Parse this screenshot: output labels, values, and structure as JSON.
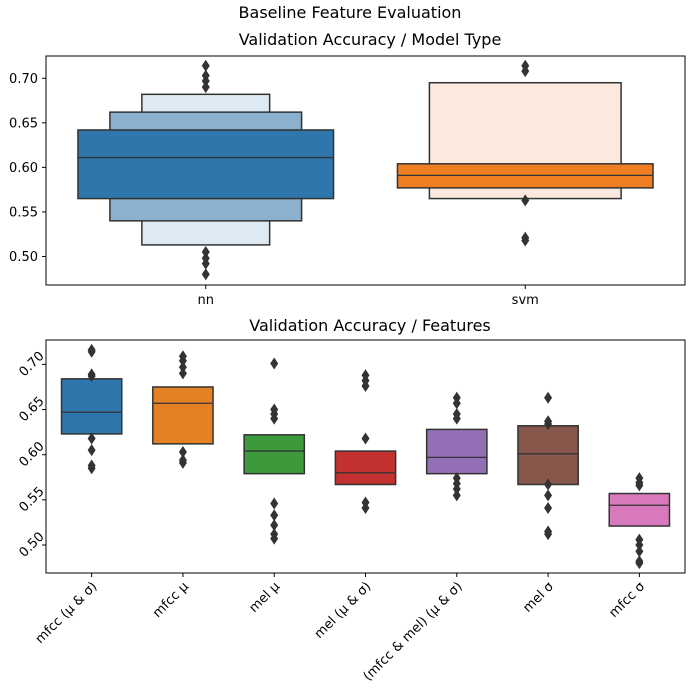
{
  "figure": {
    "suptitle": "Baseline Feature Evaluation"
  },
  "colors": {
    "nn": [
      "#2f76ad",
      "#8cb1cf",
      "#deeaf3"
    ],
    "svm": [
      "#ef7e22",
      "#fae9dc"
    ],
    "features": [
      "#2f76ad",
      "#e48125",
      "#3c9a3c",
      "#c33030",
      "#9370b5",
      "#87574b",
      "#d979bd"
    ],
    "outlier": "#333333",
    "edge": "#333333"
  },
  "chart_data": [
    {
      "type": "boxen",
      "title": "Validation Accuracy / Model Type",
      "xlabel": "",
      "ylabel": "",
      "ylim": [
        0.468,
        0.725
      ],
      "yticks": [
        0.5,
        0.55,
        0.6,
        0.65,
        0.7
      ],
      "ytick_labels": [
        "0.50",
        "0.55",
        "0.60",
        "0.65",
        "0.70"
      ],
      "grid": false,
      "categories": [
        "nn",
        "svm"
      ],
      "series": [
        {
          "median": 0.611,
          "levels": [
            [
              0.565,
              0.642
            ],
            [
              0.54,
              0.662
            ],
            [
              0.513,
              0.682
            ]
          ],
          "outliers": [
            0.714,
            0.703,
            0.697,
            0.69,
            0.505,
            0.498,
            0.492,
            0.48
          ]
        },
        {
          "median": 0.591,
          "levels": [
            [
              0.577,
              0.604
            ],
            [
              0.565,
              0.695
            ]
          ],
          "outliers": [
            0.714,
            0.708,
            0.563,
            0.521,
            0.518
          ]
        }
      ]
    },
    {
      "type": "boxen",
      "title": "Validation Accuracy / Features",
      "xlabel": "",
      "ylabel": "",
      "ylim": [
        0.469,
        0.727
      ],
      "yticks": [
        0.5,
        0.55,
        0.6,
        0.65,
        0.7
      ],
      "ytick_labels": [
        "0.50",
        "0.55",
        "0.60",
        "0.65",
        "0.70"
      ],
      "grid": false,
      "categories": [
        "mfcc (μ & σ)",
        "mfcc μ",
        "mel μ",
        "mel (μ & σ)",
        "(mfcc & mel) (μ & σ)",
        "mel σ",
        "mfcc σ"
      ],
      "series": [
        {
          "median": 0.647,
          "levels": [
            [
              0.623,
              0.684
            ]
          ],
          "outliers": [
            0.716,
            0.714,
            0.689,
            0.687,
            0.618,
            0.605,
            0.588,
            0.585
          ]
        },
        {
          "median": 0.657,
          "levels": [
            [
              0.612,
              0.675
            ]
          ],
          "outliers": [
            0.709,
            0.704,
            0.697,
            0.69,
            0.603,
            0.594,
            0.591
          ]
        },
        {
          "median": 0.604,
          "levels": [
            [
              0.579,
              0.622
            ]
          ],
          "outliers": [
            0.701,
            0.65,
            0.645,
            0.64,
            0.546,
            0.533,
            0.522,
            0.512,
            0.507
          ]
        },
        {
          "median": 0.58,
          "levels": [
            [
              0.567,
              0.604
            ]
          ],
          "outliers": [
            0.688,
            0.682,
            0.676,
            0.618,
            0.547,
            0.541
          ]
        },
        {
          "median": 0.597,
          "levels": [
            [
              0.579,
              0.628
            ]
          ],
          "outliers": [
            0.663,
            0.657,
            0.645,
            0.64,
            0.574,
            0.568,
            0.562,
            0.555
          ]
        },
        {
          "median": 0.601,
          "levels": [
            [
              0.567,
              0.632
            ]
          ],
          "outliers": [
            0.663,
            0.637,
            0.634,
            0.567,
            0.555,
            0.541,
            0.515,
            0.512
          ]
        },
        {
          "median": 0.544,
          "levels": [
            [
              0.521,
              0.557
            ]
          ],
          "outliers": [
            0.574,
            0.569,
            0.566,
            0.506,
            0.5,
            0.493,
            0.482,
            0.48
          ]
        }
      ]
    }
  ]
}
